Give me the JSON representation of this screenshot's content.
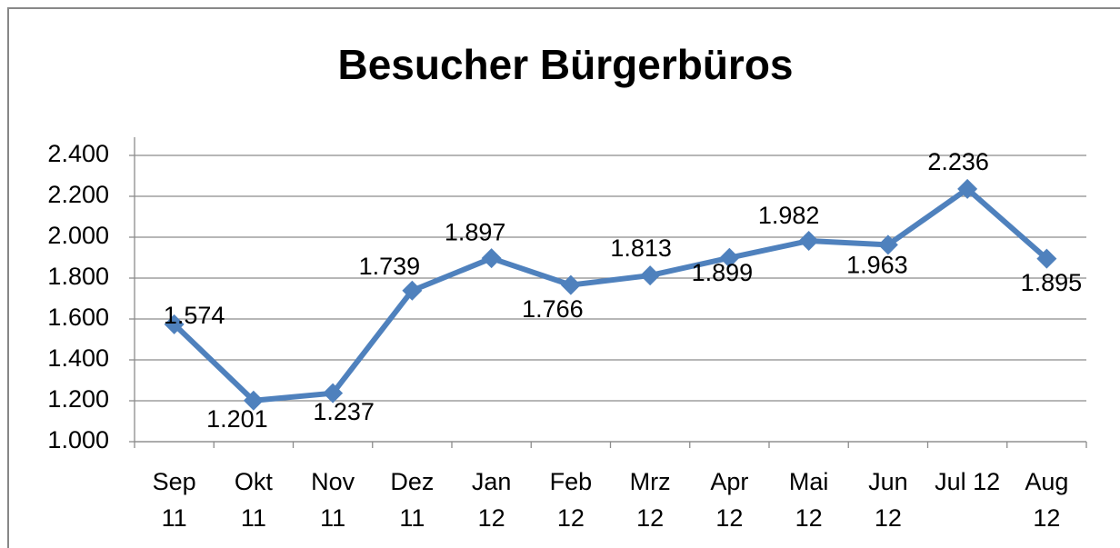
{
  "chart_data": {
    "type": "line",
    "title": "Besucher Bürgerbüros",
    "categories": [
      "Sep\n11",
      "Okt\n11",
      "Nov\n11",
      "Dez\n11",
      "Jan\n12",
      "Feb\n12",
      "Mrz\n12",
      "Apr\n12",
      "Mai\n12",
      "Jun\n12",
      "Jul 12",
      "Aug\n12"
    ],
    "series": [
      {
        "name": "Besucher",
        "color": "#4f81bd",
        "values": [
          1574,
          1201,
          1237,
          1739,
          1897,
          1766,
          1813,
          1899,
          1982,
          1963,
          2236,
          1895
        ],
        "value_labels": [
          "1.574",
          "1.201",
          "1.237",
          "1.739",
          "1.897",
          "1.766",
          "1.813",
          "1.899",
          "1.982",
          "1.963",
          "2.236",
          "1.895"
        ]
      }
    ],
    "ylim": [
      1000,
      2400
    ],
    "yticks": [
      {
        "value": 1000,
        "label": "1.000"
      },
      {
        "value": 1200,
        "label": "1.200"
      },
      {
        "value": 1400,
        "label": "1.400"
      },
      {
        "value": 1600,
        "label": "1.600"
      },
      {
        "value": 1800,
        "label": "1.800"
      },
      {
        "value": 2000,
        "label": "2.000"
      },
      {
        "value": 2200,
        "label": "2.200"
      },
      {
        "value": 2400,
        "label": "2.400"
      }
    ],
    "grid": true
  }
}
